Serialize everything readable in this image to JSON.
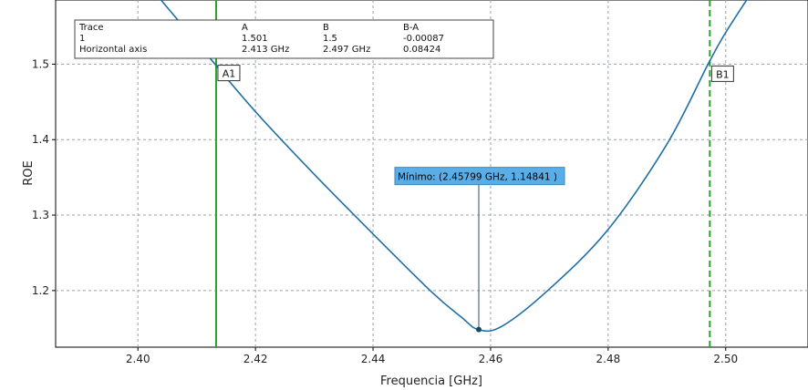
{
  "chart_data": {
    "type": "line",
    "xlabel": "Frequencia [GHz]",
    "ylabel": "ROE",
    "xlim": [
      2.386,
      2.514
    ],
    "ylim": [
      1.125,
      1.585
    ],
    "grid": true,
    "x_ticks": [
      2.4,
      2.42,
      2.44,
      2.46,
      2.48,
      2.5
    ],
    "x_tick_labels": [
      "2.40",
      "2.42",
      "2.44",
      "2.46",
      "2.48",
      "2.50"
    ],
    "y_ticks": [
      1.2,
      1.3,
      1.4,
      1.5
    ],
    "y_tick_labels": [
      "1.2",
      "1.3",
      "1.4",
      "1.5"
    ],
    "series": [
      {
        "x": [
          2.4,
          2.405,
          2.41,
          2.413,
          2.42,
          2.43,
          2.44,
          2.45,
          2.455,
          2.458,
          2.462,
          2.47,
          2.48,
          2.49,
          2.497,
          2.5,
          2.505
        ],
        "y": [
          1.622,
          1.575,
          1.529,
          1.501,
          1.437,
          1.354,
          1.275,
          1.198,
          1.165,
          1.148,
          1.153,
          1.202,
          1.281,
          1.394,
          1.5,
          1.542,
          1.602
        ],
        "color": "#1f6fa3"
      }
    ],
    "markers": [
      {
        "label": "A1",
        "x": 2.4133,
        "y": 1.501,
        "style": "solid",
        "color": "#27a327"
      },
      {
        "label": "B1",
        "x": 2.4973,
        "y": 1.5,
        "style": "dashed",
        "color": "#27a327"
      }
    ],
    "annotation": {
      "text": "Mínimo: (2.45799 GHz, 1.14841 )",
      "x": 2.45799,
      "y": 1.14841,
      "label_y": 1.35,
      "color": "#5aaee8"
    },
    "table": {
      "headers": [
        "Trace",
        "A",
        "B",
        "B-A"
      ],
      "rows": [
        [
          "1",
          "1.501",
          "1.5",
          "-0.00087"
        ],
        [
          "Horizontal axis",
          "2.413 GHz",
          "2.497 GHz",
          "0.08424"
        ]
      ]
    }
  }
}
